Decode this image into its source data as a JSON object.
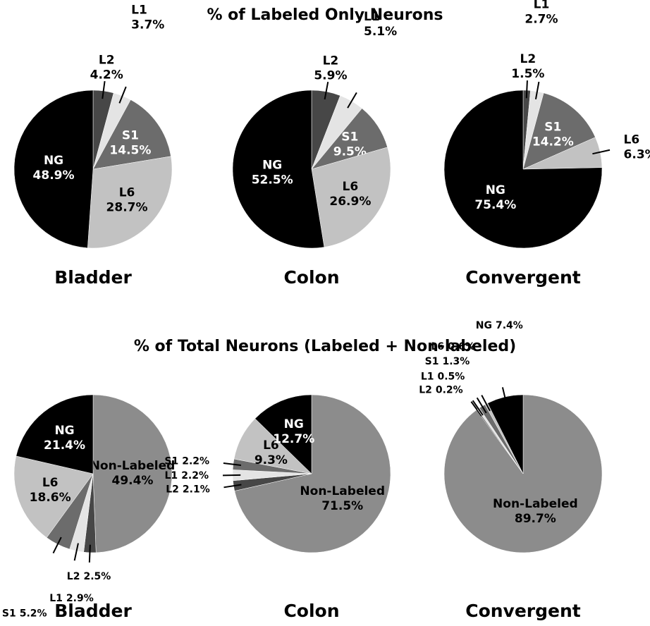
{
  "chart_data": [
    {
      "type": "pie",
      "title": "% of Labeled Only Neurons",
      "pies": [
        {
          "label": "Bladder",
          "categories": [
            "L2",
            "L1",
            "S1",
            "L6",
            "NG"
          ],
          "values": [
            4.2,
            3.7,
            14.5,
            28.7,
            48.9
          ],
          "value_labels": [
            "4.2%",
            "3.7%",
            "14.5%",
            "28.7%",
            "48.9%"
          ]
        },
        {
          "label": "Colon",
          "categories": [
            "L2",
            "L1",
            "S1",
            "L6",
            "NG"
          ],
          "values": [
            5.9,
            5.1,
            9.5,
            26.9,
            52.5
          ],
          "value_labels": [
            "5.9%",
            "5.1%",
            "9.5%",
            "26.9%",
            "52.5%"
          ]
        },
        {
          "label": "Convergent",
          "categories": [
            "L2",
            "L1",
            "S1",
            "L6",
            "NG"
          ],
          "values": [
            1.5,
            2.7,
            14.2,
            6.3,
            75.4
          ],
          "value_labels": [
            "1.5%",
            "2.7%",
            "14.2%",
            "6.3%",
            "75.4%"
          ]
        }
      ],
      "colors": [
        "#474747",
        "#e4e4e4",
        "#6c6c6c",
        "#c2c2c2",
        "#000000"
      ]
    },
    {
      "type": "pie",
      "title": "% of Total Neurons (Labeled + Non-labeled)",
      "pies": [
        {
          "label": "Bladder",
          "categories": [
            "Non-Labeled",
            "L2",
            "L1",
            "S1",
            "L6",
            "NG"
          ],
          "values": [
            49.4,
            2.5,
            2.9,
            5.2,
            18.6,
            21.4
          ],
          "value_labels": [
            "49.4%",
            "2.5%",
            "2.9%",
            "5.2%",
            "18.6%",
            "21.4%"
          ]
        },
        {
          "label": "Colon",
          "categories": [
            "Non-Labeled",
            "L2",
            "L1",
            "S1",
            "L6",
            "NG"
          ],
          "values": [
            71.5,
            2.1,
            2.2,
            2.2,
            9.3,
            12.7
          ],
          "value_labels": [
            "71.5%",
            "2.1%",
            "2.2%",
            "2.2%",
            "9.3%",
            "12.7%"
          ]
        },
        {
          "label": "Convergent",
          "categories": [
            "Non-Labeled",
            "L2",
            "L1",
            "S1",
            "L6",
            "NG"
          ],
          "values": [
            89.7,
            0.2,
            0.5,
            1.3,
            0.6,
            7.4
          ],
          "value_labels": [
            "89.7%",
            "0.2%",
            "0.5%",
            "1.3%",
            "0.6%",
            "7.4%"
          ]
        }
      ],
      "colors": [
        "#8c8c8c",
        "#474747",
        "#e4e4e4",
        "#6c6c6c",
        "#c2c2c2",
        "#000000"
      ]
    }
  ]
}
